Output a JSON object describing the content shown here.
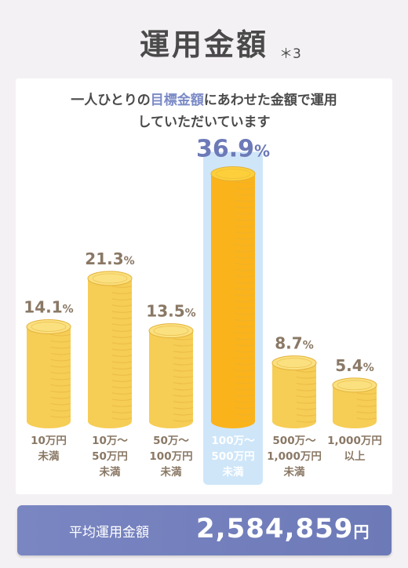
{
  "header": {
    "title": "運用金額",
    "note": "＊3"
  },
  "subtitle": {
    "line1_pre": "一人ひとりの",
    "line1_highlight": "目標金額",
    "line1_post": "にあわせた金額で運用",
    "line2": "していただいています"
  },
  "chart_data": {
    "type": "bar",
    "categories": [
      [
        "10万円",
        "未満"
      ],
      [
        "10万〜",
        "50万円",
        "未満"
      ],
      [
        "50万〜",
        "100万円",
        "未満"
      ],
      [
        "100万〜",
        "500万円",
        "未満"
      ],
      [
        "500万〜",
        "1,000万円",
        "未満"
      ],
      [
        "1,000万円",
        "以上"
      ]
    ],
    "values": [
      14.1,
      21.3,
      13.5,
      36.9,
      8.7,
      5.4
    ],
    "value_labels": [
      "14.1",
      "21.3",
      "13.5",
      "36.9",
      "8.7",
      "5.4"
    ],
    "unit": "%",
    "highlight_index": 3,
    "colors": {
      "coin": "#f6cd55",
      "coin_top": "#fbe07f",
      "coin_line": "#e3b13a",
      "coin_highlight": "#fbb31b",
      "coin_highlight_top": "#fdd03b",
      "label": "#8a7865",
      "label_highlight": "#6d7ab8",
      "category": "#8a7865",
      "category_highlight": "#ffffff",
      "highlight_bg": "#cfe6f9"
    }
  },
  "average": {
    "label": "平均運用金額",
    "value": "2,584,859",
    "unit": "円"
  }
}
